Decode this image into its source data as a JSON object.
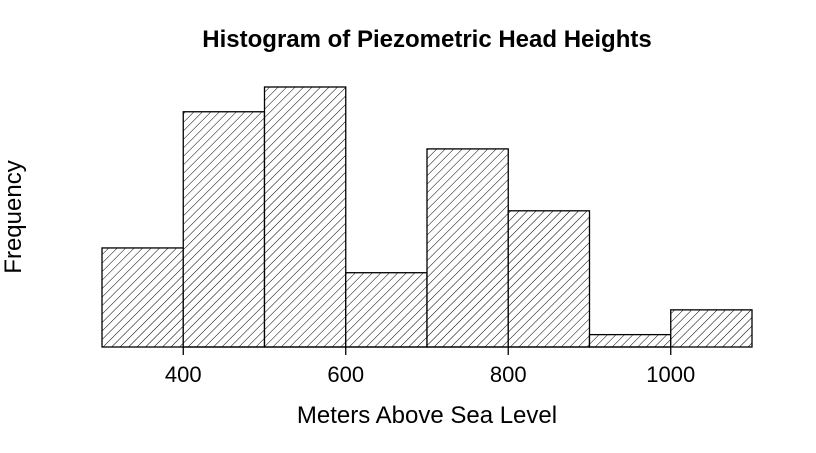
{
  "chart_data": {
    "type": "bar",
    "subtype": "histogram",
    "title": "Histogram of Piezometric Head Heights",
    "xlabel": "Meters Above Sea Level",
    "ylabel": "Frequency",
    "bins": [
      {
        "start": 300,
        "end": 400,
        "count": 8
      },
      {
        "start": 400,
        "end": 500,
        "count": 19
      },
      {
        "start": 500,
        "end": 600,
        "count": 21
      },
      {
        "start": 600,
        "end": 700,
        "count": 6
      },
      {
        "start": 700,
        "end": 800,
        "count": 16
      },
      {
        "start": 800,
        "end": 900,
        "count": 11
      },
      {
        "start": 900,
        "end": 1000,
        "count": 1
      },
      {
        "start": 1000,
        "end": 1100,
        "count": 3
      }
    ],
    "xlim": [
      300,
      1100
    ],
    "ylim": [
      0,
      21
    ],
    "xticks": [
      400,
      600,
      800,
      1000
    ],
    "yticks_visible": false,
    "bar_fill": "diagonal-hatch",
    "bar_color": "#ffffff",
    "line_color": "#000000",
    "grid": false,
    "legend": "none"
  }
}
